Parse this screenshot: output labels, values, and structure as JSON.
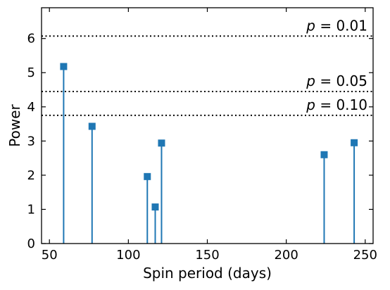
{
  "chart_data": {
    "type": "stem",
    "xlabel": "Spin period (days)",
    "ylabel": "Power",
    "xlim": [
      45,
      255
    ],
    "ylim": [
      0,
      6.9
    ],
    "xticks": [
      50,
      100,
      150,
      200,
      250
    ],
    "yticks": [
      0,
      1,
      2,
      3,
      4,
      5,
      6
    ],
    "marker": "square",
    "color": "#1f77b4",
    "points": [
      {
        "x": 59,
        "y": 5.18
      },
      {
        "x": 77,
        "y": 3.43
      },
      {
        "x": 112,
        "y": 1.96
      },
      {
        "x": 117,
        "y": 1.07
      },
      {
        "x": 121,
        "y": 2.94
      },
      {
        "x": 224,
        "y": 2.6
      },
      {
        "x": 243,
        "y": 2.95
      }
    ],
    "thresholds": [
      {
        "p_symbol": "p",
        "value_text": "= 0.01",
        "y": 6.07
      },
      {
        "p_symbol": "p",
        "value_text": "= 0.05",
        "y": 4.45
      },
      {
        "p_symbol": "p",
        "value_text": "= 0.10",
        "y": 3.75
      }
    ],
    "grid": false
  }
}
